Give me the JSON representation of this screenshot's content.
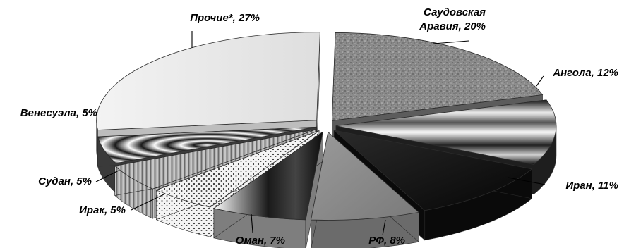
{
  "chart_data": {
    "type": "pie",
    "title": "",
    "style": "3d-exploded",
    "legend": "none",
    "slices": [
      {
        "name": "Саудовская Аравия",
        "label_lines": [
          "Саудовская",
          "Аравия, 20%"
        ],
        "value": 20,
        "pattern": "granite"
      },
      {
        "name": "Ангола",
        "label_lines": [
          "Ангола, 12%"
        ],
        "value": 12,
        "pattern": "horizontal-metal"
      },
      {
        "name": "Иран",
        "label_lines": [
          "Иран, 11%"
        ],
        "value": 11,
        "pattern": "dark"
      },
      {
        "name": "РФ",
        "label_lines": [
          "РФ, 8%"
        ],
        "value": 8,
        "pattern": "gray"
      },
      {
        "name": "Оман",
        "label_lines": [
          "Оман, 7%"
        ],
        "value": 7,
        "pattern": "dark-stripes"
      },
      {
        "name": "Ирак",
        "label_lines": [
          "Ирак, 5%"
        ],
        "value": 5,
        "pattern": "dots"
      },
      {
        "name": "Судан",
        "label_lines": [
          "Судан, 5%"
        ],
        "value": 5,
        "pattern": "wood"
      },
      {
        "name": "Венесуэла",
        "label_lines": [
          "Венесуэла, 5%"
        ],
        "value": 5,
        "pattern": "rings"
      },
      {
        "name": "Прочие*",
        "label_lines": [
          "Прочие*, 27%"
        ],
        "value": 27,
        "pattern": "light"
      }
    ]
  }
}
